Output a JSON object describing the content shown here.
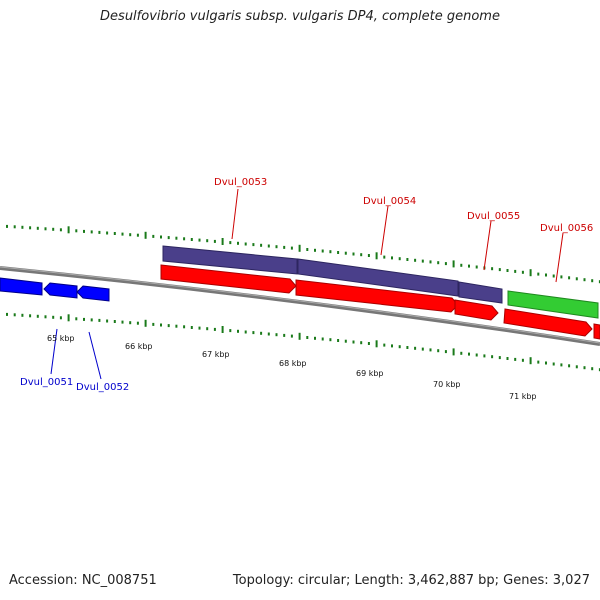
{
  "title": "Desulfovibrio vulgaris subsp. vulgaris DP4, complete genome",
  "footer": {
    "accession": "Accession: NC_008751",
    "summary": "Topology: circular; Length: 3,462,887 bp; Genes: 3,027"
  },
  "scale_labels": [
    "65 kbp",
    "66 kbp",
    "67 kbp",
    "68 kbp",
    "69 kbp",
    "70 kbp",
    "71 kbp"
  ],
  "gene_labels": {
    "Dvul_0051": "Dvul_0051",
    "Dvul_0052": "Dvul_0052",
    "Dvul_0053": "Dvul_0053",
    "Dvul_0054": "Dvul_0054",
    "Dvul_0055": "Dvul_0055",
    "Dvul_0056": "Dvul_0056"
  },
  "colors": {
    "forward_cds": "#ff0000",
    "reverse_cds": "#0000ff",
    "feature_purple": "#4a3f8a",
    "feature_green": "#33cc33",
    "tick": "#1a7a1a",
    "backbone": "#777777",
    "label_forward": "#cc0000",
    "label_reverse": "#0000cc"
  }
}
